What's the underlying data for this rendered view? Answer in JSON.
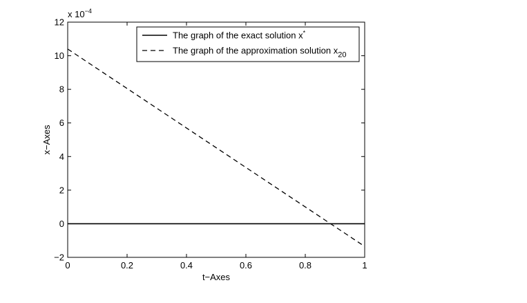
{
  "chart_data": {
    "type": "line",
    "xlabel": "t−Axes",
    "ylabel": "x−Axes",
    "scale_note": {
      "base": "x 10",
      "exponent": "−4"
    },
    "xlim": [
      0,
      1
    ],
    "ylim": [
      -2,
      12
    ],
    "xticks": [
      0,
      0.2,
      0.4,
      0.6,
      0.8,
      1
    ],
    "xtick_labels": [
      "0",
      "0.2",
      "0.4",
      "0.6",
      "0.8",
      "1"
    ],
    "yticks": [
      -2,
      0,
      2,
      4,
      6,
      8,
      10,
      12
    ],
    "ytick_labels": [
      "−2",
      "0",
      "2",
      "4",
      "6",
      "8",
      "10",
      "12"
    ],
    "grid": false,
    "legend_position": "top-right",
    "series": [
      {
        "name": "The graph of the exact solution x*",
        "legend_main": "The graph of the exact solution x",
        "legend_sup": "*",
        "style": "solid",
        "color": "#000000",
        "x": [
          0,
          1
        ],
        "y": [
          0,
          0
        ]
      },
      {
        "name": "The graph of the approximation solution x20",
        "legend_main": "The graph of the approximation solution x",
        "legend_sub": "20",
        "style": "dashed",
        "color": "#000000",
        "x": [
          0,
          1
        ],
        "y": [
          10.4,
          -1.35
        ]
      }
    ]
  }
}
